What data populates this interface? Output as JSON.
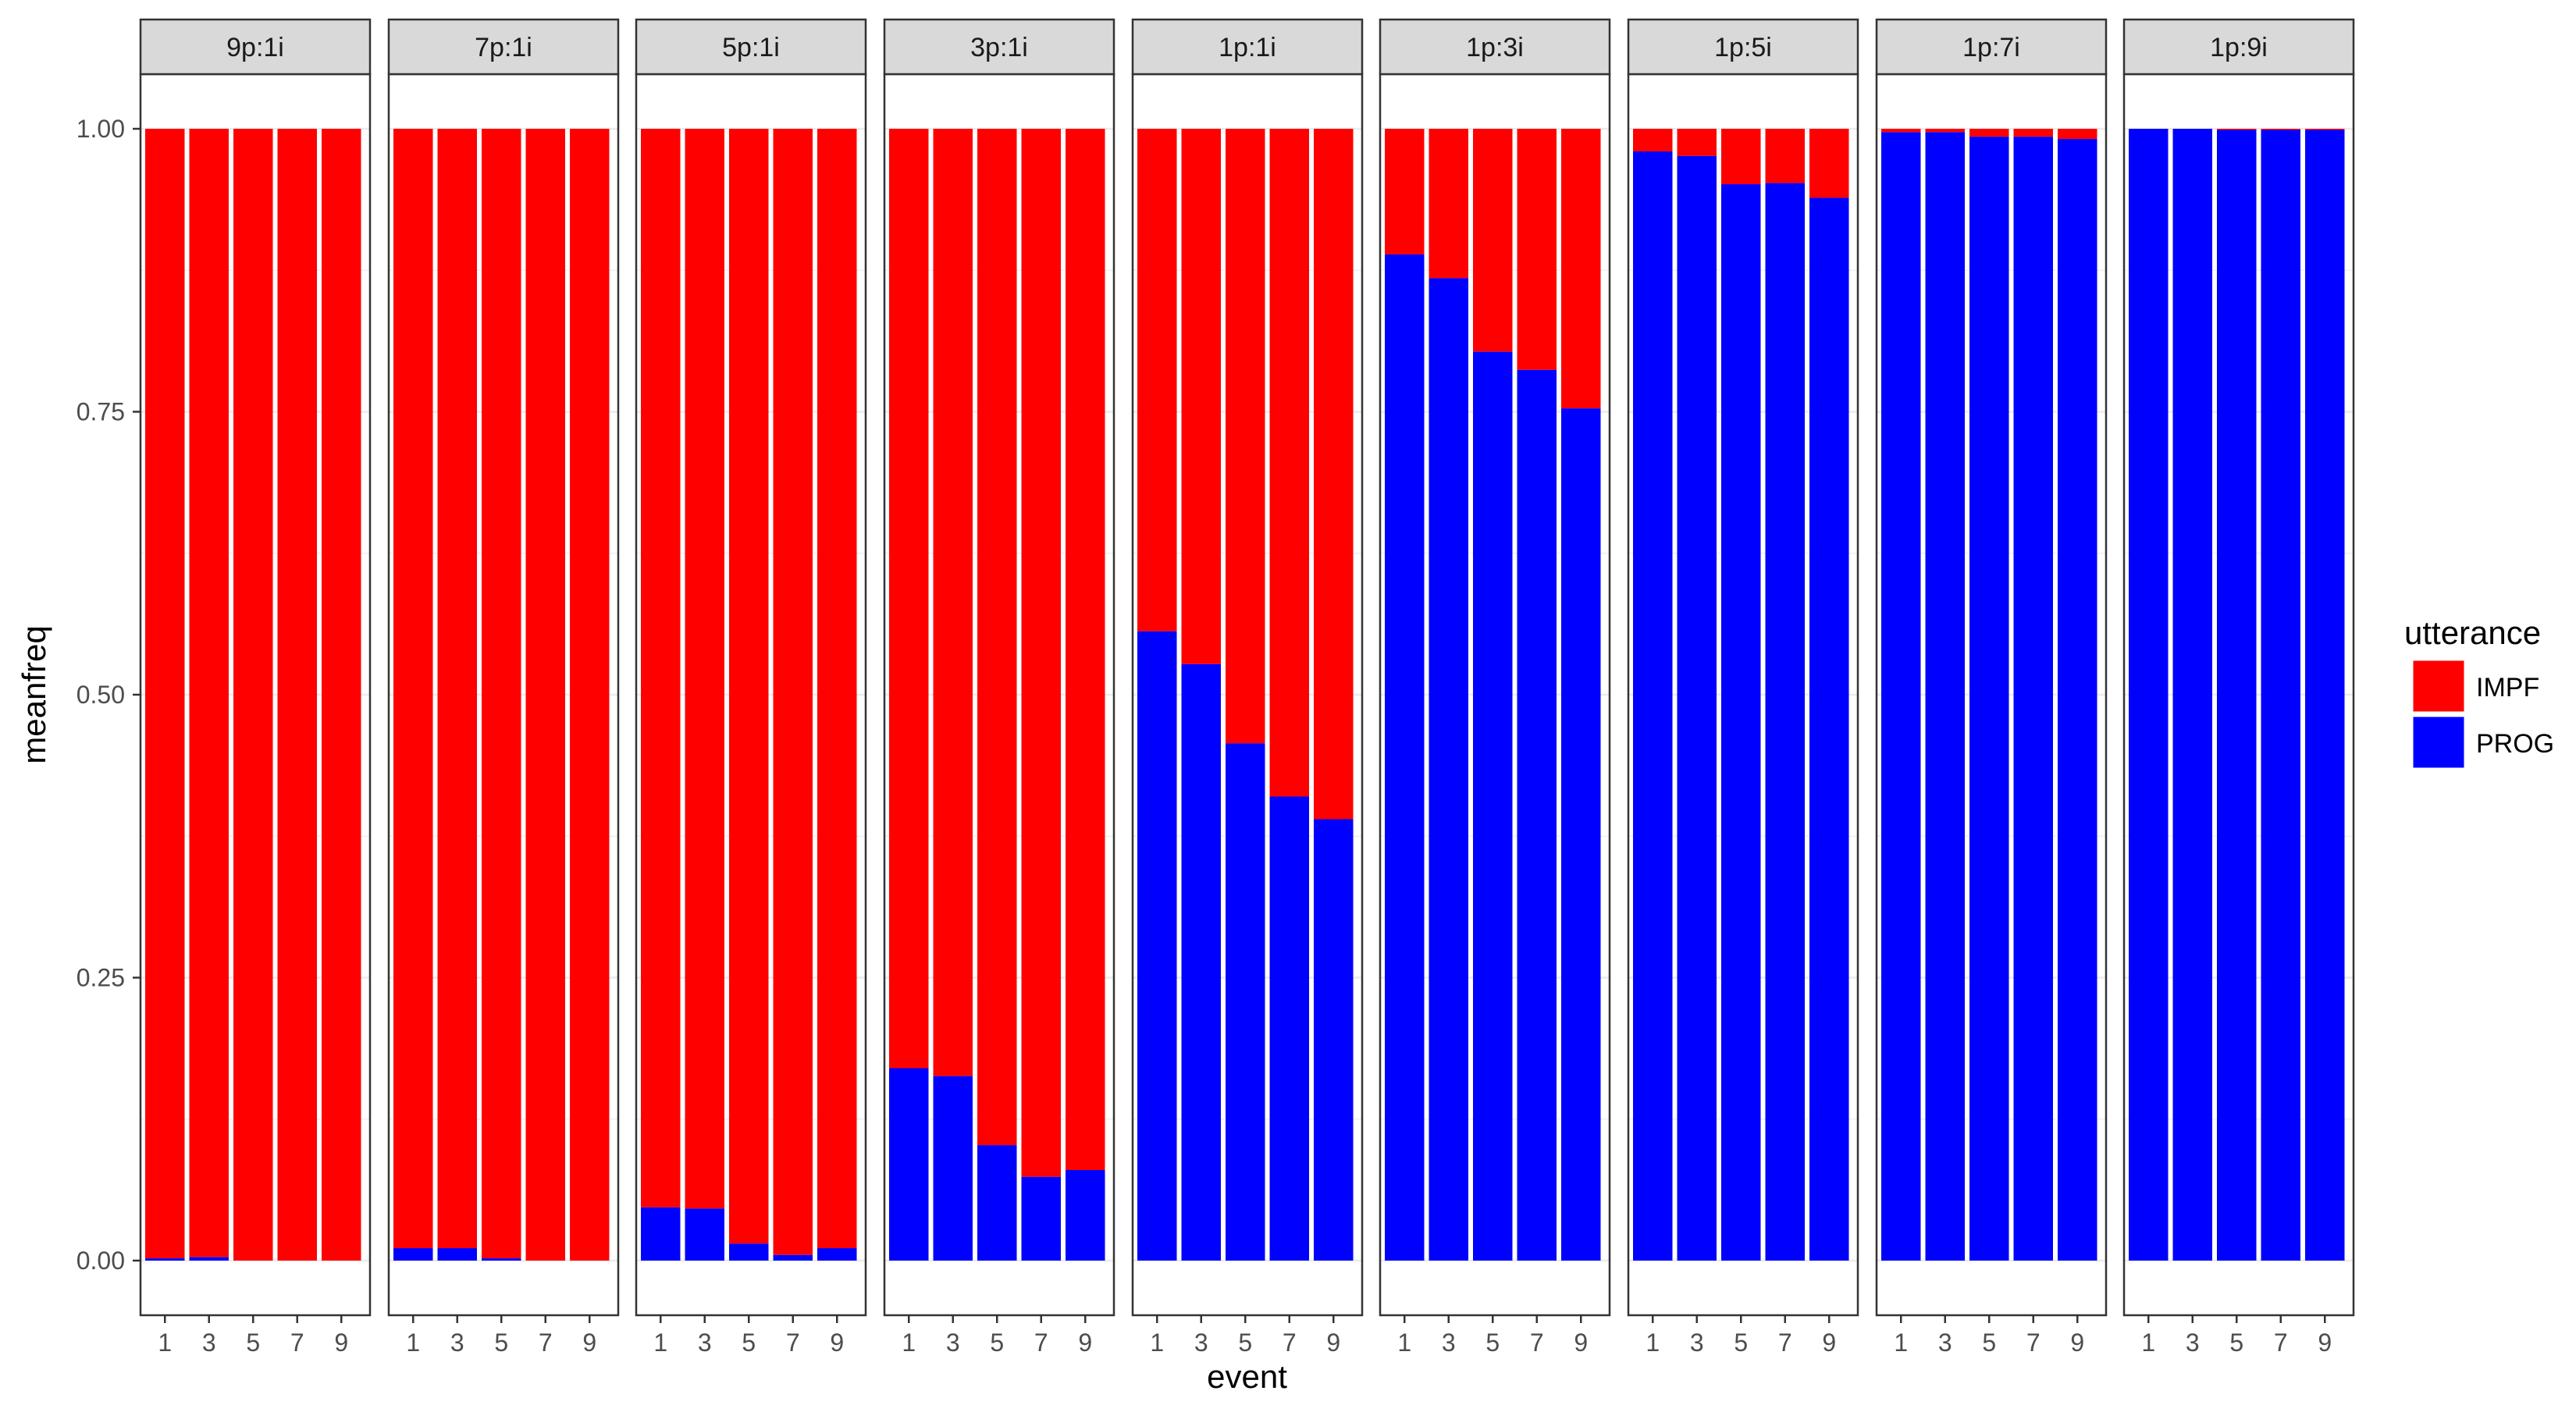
{
  "chart_data": {
    "type": "bar",
    "stacked": true,
    "xlabel": "event",
    "ylabel": "meanfreq",
    "ylim": [
      0,
      1
    ],
    "y_ticks": [
      "0.00",
      "0.25",
      "0.50",
      "0.75",
      "1.00"
    ],
    "y_tick_values": [
      0,
      0.25,
      0.5,
      0.75,
      1.0
    ],
    "x_ticks": [
      "1",
      "3",
      "5",
      "7",
      "9"
    ],
    "grid": true,
    "legend": {
      "title": "utterance",
      "position": "right",
      "entries": [
        {
          "name": "IMPF",
          "color": "#ff0000"
        },
        {
          "name": "PROG",
          "color": "#0000ff"
        }
      ]
    },
    "colors": {
      "IMPF": "#ff0000",
      "PROG": "#0000ff",
      "panel_border": "#333333",
      "strip_fill": "#d9d9d9",
      "grid_major": "#ebebeb"
    },
    "facets": [
      {
        "label": "9p:1i",
        "prog": [
          0.002,
          0.003,
          0.0,
          0.0,
          0.0
        ]
      },
      {
        "label": "7p:1i",
        "prog": [
          0.011,
          0.011,
          0.002,
          0.0,
          0.0
        ]
      },
      {
        "label": "5p:1i",
        "prog": [
          0.047,
          0.046,
          0.015,
          0.005,
          0.011
        ]
      },
      {
        "label": "3p:1i",
        "prog": [
          0.17,
          0.163,
          0.102,
          0.074,
          0.08
        ]
      },
      {
        "label": "1p:1i",
        "prog": [
          0.556,
          0.527,
          0.457,
          0.41,
          0.39
        ]
      },
      {
        "label": "1p:3i",
        "prog": [
          0.889,
          0.868,
          0.803,
          0.787,
          0.753
        ]
      },
      {
        "label": "1p:5i",
        "prog": [
          0.98,
          0.976,
          0.951,
          0.952,
          0.939
        ]
      },
      {
        "label": "1p:7i",
        "prog": [
          0.997,
          0.997,
          0.993,
          0.993,
          0.991
        ]
      },
      {
        "label": "1p:9i",
        "prog": [
          1.0,
          1.0,
          0.999,
          0.999,
          0.999
        ]
      }
    ]
  }
}
